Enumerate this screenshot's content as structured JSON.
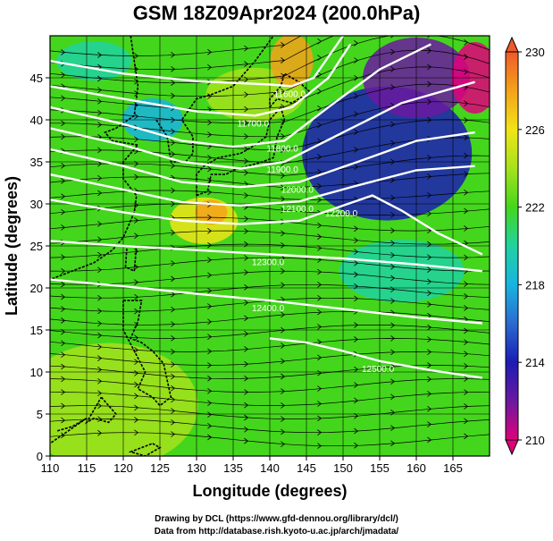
{
  "chart_data": {
    "type": "heatmap",
    "title": "GSM 18Z09Apr2024 (200.0hPa)",
    "xlabel": "Longitude (degrees)",
    "ylabel": "Latitude  (degrees)",
    "xlim": [
      110,
      170
    ],
    "ylim": [
      0,
      50
    ],
    "x_ticks": [
      "110",
      "115",
      "120",
      "125",
      "130",
      "135",
      "140",
      "145",
      "150",
      "155",
      "160",
      "165"
    ],
    "y_ticks": [
      "0",
      "5",
      "10",
      "15",
      "20",
      "25",
      "30",
      "35",
      "40",
      "45"
    ],
    "colorbar": {
      "range": [
        210,
        230
      ],
      "tick_labels": [
        "210",
        "214",
        "218",
        "222",
        "226",
        "230"
      ],
      "stops": [
        "#e0007a",
        "#6a1aa0",
        "#1c1cb4",
        "#2a6ad0",
        "#18b4e0",
        "#20d2a0",
        "#44d61c",
        "#a6e21c",
        "#f0e418",
        "#f4a21a",
        "#f05a2a"
      ]
    },
    "contours": [
      {
        "label": "11600.0",
        "lats": [
          47.0,
          45.5,
          44.6,
          44.2,
          44.0,
          45.0,
          47.5,
          50.0
        ],
        "lons": [
          110,
          120,
          130,
          140,
          143,
          146,
          148,
          150
        ]
      },
      {
        "label": "11700.0",
        "lats": [
          44.0,
          42.5,
          41.0,
          40.5,
          41.5,
          45.0,
          49.0
        ],
        "lons": [
          110,
          120,
          130,
          138,
          143,
          148,
          151
        ]
      },
      {
        "label": "11800.0",
        "lats": [
          41.5,
          39.5,
          37.5,
          36.8,
          37.5,
          41.5,
          46.0,
          49.0
        ],
        "lons": [
          110,
          120,
          128,
          135,
          142,
          148,
          155,
          162
        ]
      },
      {
        "label": "11900.0",
        "lats": [
          39.0,
          37.0,
          35.0,
          34.2,
          35.0,
          38.5,
          42.0,
          44.5
        ],
        "lons": [
          110,
          120,
          128,
          136,
          142,
          150,
          158,
          168
        ]
      },
      {
        "label": "12000.0",
        "lats": [
          36.5,
          34.5,
          32.6,
          32.0,
          32.6,
          35.0,
          37.5,
          38.5
        ],
        "lons": [
          110,
          120,
          128,
          136,
          144,
          152,
          160,
          168
        ]
      },
      {
        "label": "12100.0",
        "lats": [
          33.5,
          31.7,
          30.2,
          29.8,
          30.3,
          32.2,
          34.0,
          34.5
        ],
        "lons": [
          110,
          120,
          128,
          136,
          144,
          152,
          160,
          168
        ]
      },
      {
        "label": "12200.0",
        "lats": [
          30.5,
          29.0,
          28.0,
          27.6,
          28.0,
          29.8,
          31.0,
          29.2,
          26.5,
          24.0
        ],
        "lons": [
          110,
          120,
          128,
          136,
          144,
          150,
          154,
          158,
          163,
          169
        ]
      },
      {
        "label": "12300.0",
        "lats": [
          25.6,
          25.0,
          24.5,
          24.0,
          23.5,
          22.8,
          22.0
        ],
        "lons": [
          110,
          120,
          130,
          140,
          150,
          160,
          169
        ]
      },
      {
        "label": "12400.0",
        "lats": [
          21.0,
          20.2,
          19.3,
          18.5,
          17.5,
          16.5,
          15.8
        ],
        "lons": [
          110,
          120,
          130,
          140,
          150,
          160,
          169
        ]
      },
      {
        "label": "12500.0",
        "lats": [
          14.0,
          13.5,
          12.5,
          11.3,
          10.2,
          9.3
        ],
        "lons": [
          140,
          145,
          150,
          155,
          162,
          169
        ]
      }
    ]
  }
}
